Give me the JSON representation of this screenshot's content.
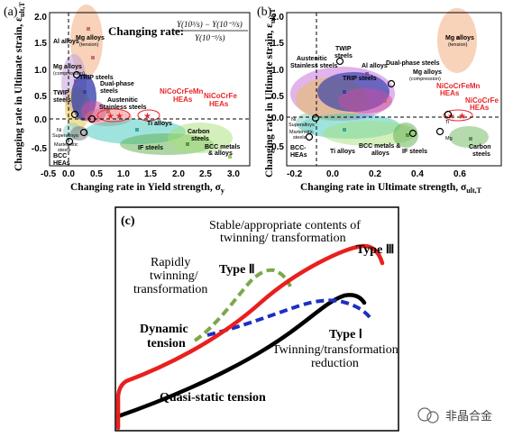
{
  "panels": {
    "a": {
      "label": "(a)",
      "x_ticks": [
        "-0.5",
        "0.0",
        "0.5",
        "1.0",
        "1.5",
        "2.0",
        "2.5",
        "3.0"
      ],
      "y_ticks": [
        "2.0",
        "1.5",
        "1.0",
        "0.5",
        "0.0",
        "-0.5"
      ],
      "x_label": "Changing rate in Yield strength, σ",
      "x_label_sub": "y",
      "y_label": "Changing rate in Ultimate strain, ε",
      "y_label_sub": "ult,T",
      "formula_prefix": "Changing rate:",
      "formula_numerator": "Y(10³/s) − Y(10⁻³/s)",
      "formula_denominator": "Y(10⁻³/s)",
      "groups": {
        "mg_tension": "Mg alloys",
        "mg_tension_sub": "(tension)",
        "al": "Al alloys",
        "mg_comp": "Mg alloys",
        "mg_comp_sub": "(compression)",
        "twip": "TWIP",
        "twip2": "steels",
        "trip": "TRIP steels",
        "dual": "Dual-phase",
        "dual2": "steels",
        "austenitic": "Austenitic",
        "austenitic2": "Stainless steels",
        "hea1": "NiCoCrFeMn",
        "hea1b": "HEAs",
        "hea2": "NiCoCrFe",
        "hea2b": "HEAs",
        "ti": "Ti alloys",
        "carbon": "Carbon",
        "carbon2": "steels",
        "ni": "Ni",
        "ni2": "Superalloys",
        "mart": "Martensitic",
        "mart2": "steels",
        "bcc_hea": "BCC",
        "bcc_hea2": "HEAs",
        "if": "IF steels",
        "bcc": "BCC metals",
        "bcc2": "& alloys"
      }
    },
    "b": {
      "label": "(b)",
      "x_ticks": [
        "-0.2",
        "0.0",
        "0.2",
        "0.4",
        "0.6"
      ],
      "y_ticks": [
        "2.0",
        "1.5",
        "1.0",
        "0.5",
        "0.0",
        "-0.5"
      ],
      "x_label": "Changing rate in Ultimate strength, σ",
      "x_label_sub": "ult,T",
      "y_label": "Changing rate  in Ultimate strain, ε",
      "y_label_sub": "ult,T",
      "groups": {
        "mg_tension": "Mg alloys",
        "mg_tension_sub": "(tension)",
        "austenitic": "Austenitic",
        "austenitic2": "Stainless steels",
        "twip": "TWIP",
        "twip2": "steels",
        "al": "Al alloys",
        "dual": "Dual-phase steels",
        "trip": "TRIP steels",
        "mg_comp": "Mg alloys",
        "mg_comp_sub": "(compression)",
        "hea1": "NiCoCrFeMn",
        "hea1b": "HEAs",
        "hea2": "NiCoCrFe",
        "hea2b": "HEAs",
        "ni": "Ni",
        "ni2": "Superalloys",
        "mart": "Martensitic",
        "mart2": "steels",
        "bcc_hea": "BCC-",
        "bcc_hea2": "HEAs",
        "ti": "Ti alloys",
        "bcc": "BCC metals &",
        "bcc2": "alloys",
        "if": "IF steels",
        "mg": "Mg",
        "ti2": "Ti",
        "carbon": "Carbon",
        "carbon2": "steels"
      }
    },
    "c": {
      "label": "(c)",
      "annotation_top1": "Stable/appropriate contents of",
      "annotation_top2": "twinning/ transformation",
      "annotation_left1": "Rapidly",
      "annotation_left2": "twinning/",
      "annotation_left3": "transformation",
      "type2": "Type Ⅱ",
      "type3": "Type Ⅲ",
      "type1": "Type Ⅰ",
      "annotation_right1": "Twinning/transformation",
      "annotation_right2": "reduction",
      "dynamic1": "Dynamic",
      "dynamic2": "tension",
      "quasi": "Quasi-static tension",
      "colors": {
        "type3": "#e8201e",
        "type2": "#7aa84a",
        "type1": "#1c2fc4",
        "quasi": "#000000"
      }
    }
  },
  "watermark": "非晶合金"
}
